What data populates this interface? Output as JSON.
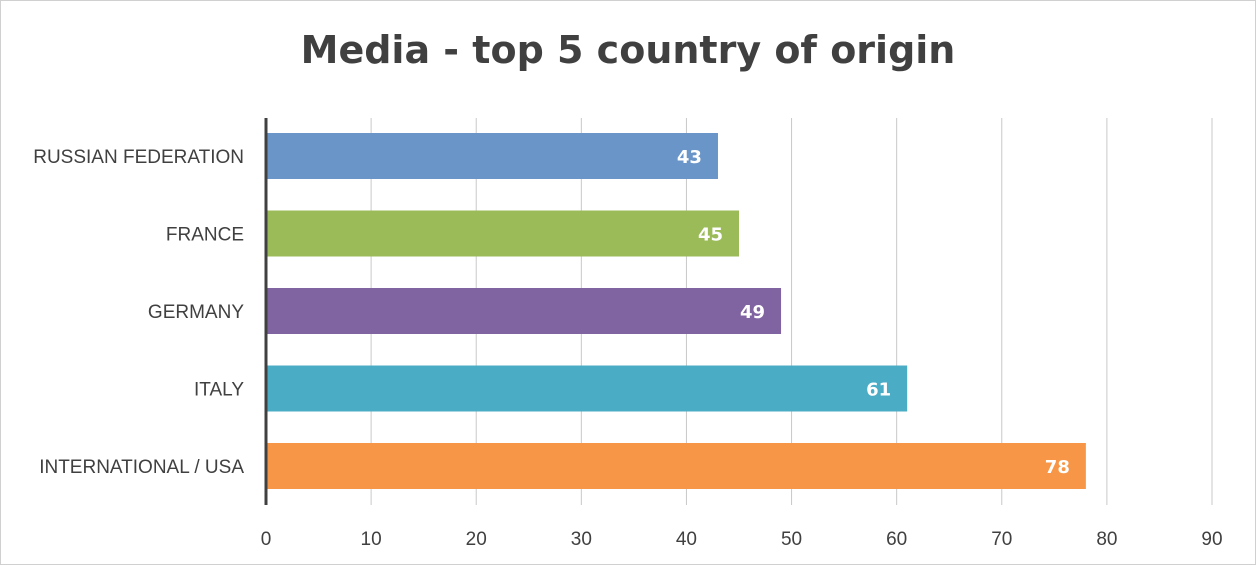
{
  "chart_data": {
    "type": "bar",
    "orientation": "horizontal",
    "title": "Media - top 5 country of origin",
    "categories": [
      "RUSSIAN FEDERATION",
      "FRANCE",
      "GERMANY",
      "ITALY",
      "INTERNATIONAL / USA"
    ],
    "values": [
      43,
      45,
      49,
      61,
      78
    ],
    "data_labels": [
      "43",
      "45",
      "49",
      "61",
      "78"
    ],
    "bar_colors": [
      "#6a95c8",
      "#9bbb59",
      "#8064a2",
      "#4bacc6",
      "#f79646"
    ],
    "xlim": [
      0,
      90
    ],
    "x_ticks": [
      0,
      10,
      20,
      30,
      40,
      50,
      60,
      70,
      80,
      90
    ],
    "x_tick_labels": [
      "0",
      "10",
      "20",
      "30",
      "40",
      "50",
      "60",
      "70",
      "80",
      "90"
    ],
    "grid": true,
    "legend": "none"
  }
}
